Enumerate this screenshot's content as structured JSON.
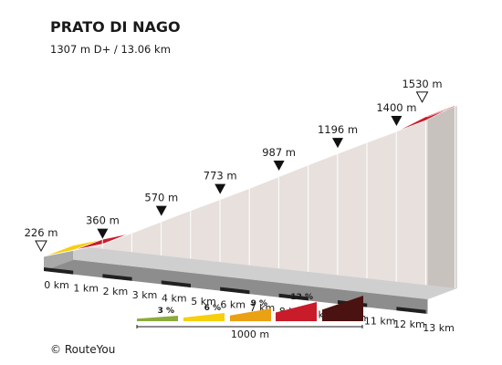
{
  "chart_data": {
    "type": "area",
    "title": "PRATO DI NAGO",
    "subtitle": "1307 m D+ / 13.06 km",
    "x_unit": "km",
    "x_ticks": [
      "0 km",
      "1 km",
      "2 km",
      "3 km",
      "4 km",
      "5 km",
      "6 km",
      "7 km",
      "8 km",
      "9 km",
      "10 km",
      "11 km",
      "12 km",
      "13 km"
    ],
    "x": [
      0,
      1,
      2,
      3,
      4,
      5,
      6,
      7,
      8,
      9,
      10,
      11,
      12,
      13,
      13.06
    ],
    "y": [
      226,
      293,
      360,
      465,
      570,
      672,
      773,
      880,
      987,
      1092,
      1196,
      1298,
      1400,
      1530,
      1530
    ],
    "segment_gradient_class": [
      3,
      9,
      9,
      9,
      9,
      6,
      6,
      12,
      6,
      9,
      9,
      9,
      9,
      9
    ],
    "altitude_labels": [
      {
        "km": 0,
        "label": "226 m",
        "marker": "start"
      },
      {
        "km": 2,
        "label": "360 m",
        "marker": "point"
      },
      {
        "km": 4,
        "label": "570 m",
        "marker": "point"
      },
      {
        "km": 6,
        "label": "773 m",
        "marker": "point"
      },
      {
        "km": 8,
        "label": "987 m",
        "marker": "point"
      },
      {
        "km": 10,
        "label": "1196 m",
        "marker": "point"
      },
      {
        "km": 12,
        "label": "1400 m",
        "marker": "point"
      },
      {
        "km": 13.06,
        "label": "1530 m",
        "marker": "end"
      }
    ],
    "legend": {
      "items": [
        {
          "label": "3 %",
          "color": "#8cab3c"
        },
        {
          "label": "6 %",
          "color": "#f6cf0f"
        },
        {
          "label": "9 %",
          "color": "#eaa114"
        },
        {
          "label": "12 %",
          "color": "#c91c2b"
        },
        {
          "label": "",
          "color": "#4a1210"
        }
      ],
      "scale_label": "1000 m"
    },
    "colors": {
      "3": "#f6cf0f",
      "6": "#eaa114",
      "9": "#c91c2b",
      "12": "#4a1210",
      "wall": "#e7e0dd",
      "base_top": "#d0cfcf",
      "base_side": "#8d8d8d",
      "base_marks": "#202020"
    },
    "grid": true
  },
  "footer": {
    "copyright": "© RouteYou"
  }
}
